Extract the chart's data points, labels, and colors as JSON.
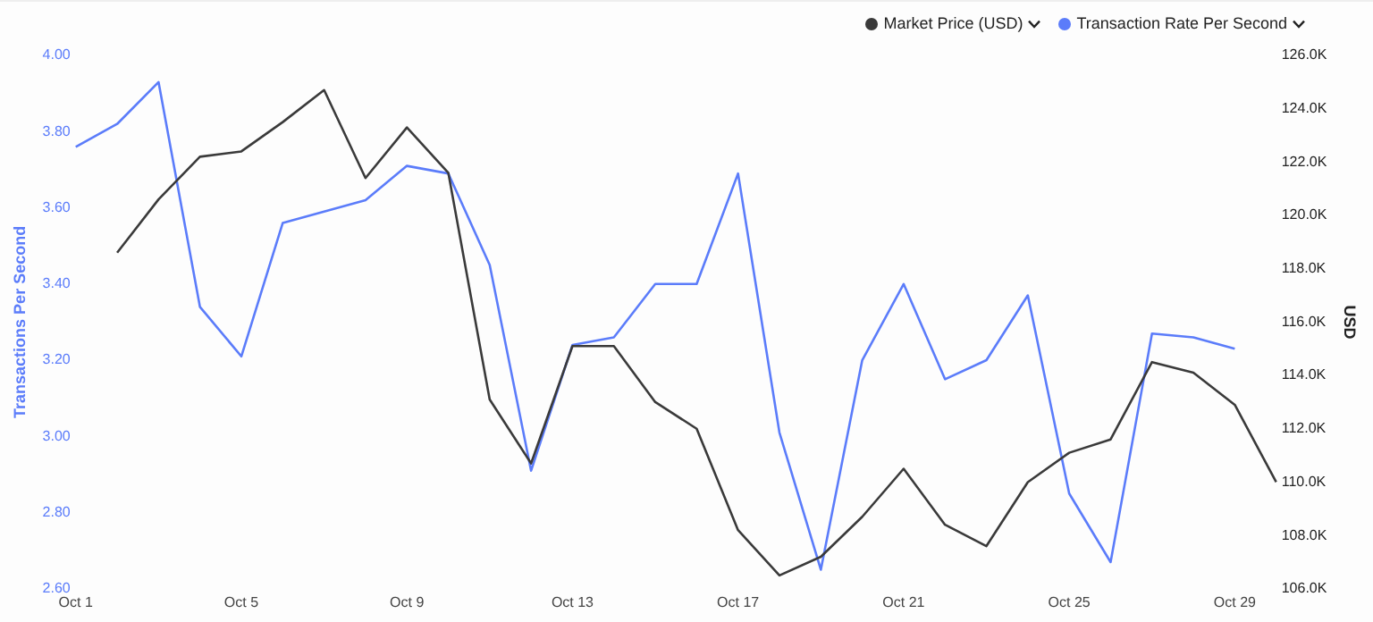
{
  "chart_data": {
    "type": "line",
    "ylabel": "Transactions Per Second",
    "y2label": "USD",
    "categories": [
      "Oct 1",
      null,
      null,
      null,
      "Oct 5",
      null,
      null,
      null,
      "Oct 9",
      null,
      null,
      null,
      "Oct 13",
      null,
      null,
      null,
      "Oct 17",
      null,
      null,
      null,
      "Oct 21",
      null,
      null,
      null,
      "Oct 25",
      null,
      null,
      null,
      "Oct 29",
      null
    ],
    "series": [
      {
        "name": "Market Price (USD)",
        "color": "#3a3a3a",
        "axis": "y2",
        "values": [
          null,
          118600,
          120600,
          122200,
          122400,
          123500,
          124700,
          121400,
          123300,
          121600,
          113100,
          110700,
          115100,
          115100,
          113000,
          112000,
          108200,
          106500,
          107200,
          108700,
          110500,
          108400,
          107600,
          110000,
          111100,
          111600,
          114500,
          114100,
          112900,
          110000
        ]
      },
      {
        "name": "Transaction Rate Per Second",
        "color": "#5b7cfa",
        "axis": "y",
        "values": [
          3.76,
          3.82,
          3.93,
          3.34,
          3.21,
          3.56,
          3.59,
          3.62,
          3.71,
          3.69,
          3.45,
          2.91,
          3.24,
          3.26,
          3.4,
          3.4,
          3.69,
          3.01,
          2.65,
          3.2,
          3.4,
          3.15,
          3.2,
          3.37,
          2.85,
          2.67,
          3.27,
          3.26,
          3.23,
          null
        ]
      }
    ],
    "ylim": [
      2.6,
      4.0
    ],
    "yticks": [
      {
        "value": 2.6,
        "label": "2.60"
      },
      {
        "value": 2.8,
        "label": "2.80"
      },
      {
        "value": 3.0,
        "label": "3.00"
      },
      {
        "value": 3.2,
        "label": "3.20"
      },
      {
        "value": 3.4,
        "label": "3.40"
      },
      {
        "value": 3.6,
        "label": "3.60"
      },
      {
        "value": 3.8,
        "label": "3.80"
      },
      {
        "value": 4.0,
        "label": "4.00"
      }
    ],
    "y2lim": [
      106000,
      126000
    ],
    "y2ticks": [
      {
        "value": 106000,
        "label": "106.0K"
      },
      {
        "value": 108000,
        "label": "108.0K"
      },
      {
        "value": 110000,
        "label": "110.0K"
      },
      {
        "value": 112000,
        "label": "112.0K"
      },
      {
        "value": 114000,
        "label": "114.0K"
      },
      {
        "value": 116000,
        "label": "116.0K"
      },
      {
        "value": 118000,
        "label": "118.0K"
      },
      {
        "value": 120000,
        "label": "120.0K"
      },
      {
        "value": 122000,
        "label": "122.0K"
      },
      {
        "value": 124000,
        "label": "124.0K"
      },
      {
        "value": 126000,
        "label": "126.0K"
      }
    ],
    "grid": false,
    "legend": "top right",
    "marker": "none",
    "line_style": "solid"
  }
}
